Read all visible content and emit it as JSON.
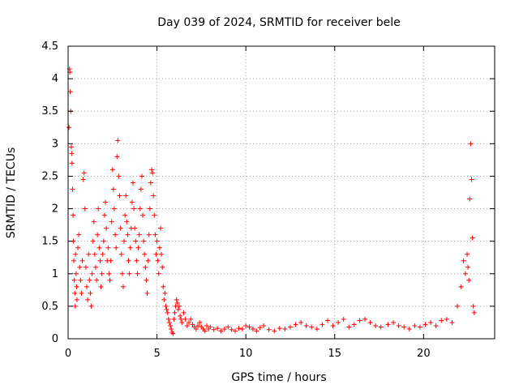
{
  "chart_data": {
    "type": "scatter",
    "title": "Day 039 of 2024, SRMTID for receiver bele",
    "xlabel": "GPS time / hours",
    "ylabel": "SRMTID / TECUs",
    "xlim": [
      0,
      24
    ],
    "ylim": [
      0,
      4.5
    ],
    "xticks": [
      0,
      5,
      10,
      15,
      20
    ],
    "xtick_labels": [
      "0",
      "5",
      "10",
      "15",
      "20"
    ],
    "yticks": [
      0,
      0.5,
      1,
      1.5,
      2,
      2.5,
      3,
      3.5,
      4,
      4.5
    ],
    "ytick_labels": [
      "0",
      "0.5",
      "1",
      "1.5",
      "2",
      "2.5",
      "3",
      "3.5",
      "4",
      "4.5"
    ],
    "grid": true,
    "marker": "+",
    "color": "#ff0000",
    "series": [
      {
        "name": "SRMTID",
        "x": [
          0.05,
          0.08,
          0.1,
          0.12,
          0.15,
          0.18,
          0.2,
          0.22,
          0.25,
          0.28,
          0.3,
          0.32,
          0.35,
          0.38,
          0.4,
          0.42,
          0.45,
          0.48,
          0.5,
          0.55,
          0.6,
          0.65,
          0.7,
          0.75,
          0.8,
          0.85,
          0.9,
          0.95,
          1.0,
          1.05,
          1.1,
          1.15,
          1.2,
          1.25,
          1.3,
          1.35,
          1.4,
          1.45,
          1.5,
          1.55,
          1.6,
          1.65,
          1.7,
          1.75,
          1.8,
          1.85,
          1.9,
          1.95,
          2.0,
          2.05,
          2.1,
          2.15,
          2.2,
          2.25,
          2.3,
          2.35,
          2.4,
          2.45,
          2.5,
          2.55,
          2.6,
          2.65,
          2.7,
          2.75,
          2.8,
          2.85,
          2.9,
          2.95,
          3.0,
          3.05,
          3.1,
          3.15,
          3.2,
          3.25,
          3.3,
          3.35,
          3.4,
          3.45,
          3.5,
          3.55,
          3.6,
          3.65,
          3.7,
          3.75,
          3.8,
          3.85,
          3.9,
          3.95,
          4.0,
          4.05,
          4.1,
          4.15,
          4.2,
          4.25,
          4.3,
          4.35,
          4.4,
          4.45,
          4.5,
          4.55,
          4.6,
          4.65,
          4.7,
          4.75,
          4.8,
          4.85,
          4.9,
          4.95,
          5.0,
          5.05,
          5.1,
          5.15,
          5.2,
          5.25,
          5.3,
          5.35,
          5.4,
          5.45,
          5.5,
          5.55,
          5.6,
          5.65,
          5.7,
          5.75,
          5.8,
          5.85,
          5.9,
          5.95,
          6.0,
          6.05,
          6.1,
          6.15,
          6.2,
          6.25,
          6.3,
          6.35,
          6.4,
          6.5,
          6.6,
          6.7,
          6.8,
          6.9,
          7.0,
          7.1,
          7.2,
          7.3,
          7.4,
          7.5,
          7.6,
          7.7,
          7.8,
          7.9,
          8.0,
          8.2,
          8.4,
          8.6,
          8.8,
          9.0,
          9.2,
          9.4,
          9.6,
          9.8,
          10.0,
          10.2,
          10.4,
          10.6,
          10.8,
          11.0,
          11.3,
          11.6,
          11.9,
          12.2,
          12.5,
          12.8,
          13.1,
          13.4,
          13.7,
          14.0,
          14.3,
          14.6,
          14.9,
          15.2,
          15.5,
          15.8,
          16.1,
          16.4,
          16.7,
          17.0,
          17.3,
          17.6,
          18.0,
          18.3,
          18.6,
          18.9,
          19.2,
          19.5,
          19.8,
          20.1,
          20.4,
          20.7,
          21.0,
          21.3,
          21.6,
          21.9,
          22.1,
          22.25,
          22.35,
          22.45,
          22.5,
          22.55,
          22.6,
          22.65,
          22.7,
          22.75,
          22.8,
          22.85
        ],
        "y": [
          3.25,
          4.15,
          4.1,
          3.8,
          3.5,
          2.95,
          2.85,
          2.7,
          2.3,
          1.9,
          1.5,
          1.2,
          0.9,
          0.7,
          0.5,
          1.3,
          1.0,
          0.8,
          0.6,
          1.4,
          1.6,
          1.1,
          0.9,
          0.7,
          1.2,
          2.45,
          2.55,
          2.0,
          1.1,
          0.8,
          0.6,
          1.3,
          0.9,
          0.7,
          0.5,
          1.0,
          1.5,
          1.8,
          1.3,
          1.1,
          0.9,
          1.6,
          2.0,
          1.4,
          1.2,
          0.8,
          1.0,
          1.3,
          1.5,
          1.9,
          2.1,
          1.7,
          1.2,
          1.4,
          1.0,
          0.9,
          1.2,
          1.8,
          2.6,
          2.3,
          2.0,
          1.6,
          1.4,
          2.8,
          3.05,
          2.5,
          2.2,
          1.7,
          1.3,
          1.0,
          0.8,
          1.5,
          1.9,
          2.2,
          1.8,
          1.6,
          1.2,
          1.0,
          1.4,
          1.7,
          2.1,
          2.4,
          2.0,
          1.7,
          1.5,
          1.2,
          1.0,
          1.4,
          1.6,
          2.0,
          2.3,
          2.5,
          1.9,
          1.5,
          1.3,
          1.1,
          0.9,
          0.7,
          1.2,
          1.6,
          2.0,
          2.4,
          2.6,
          2.55,
          2.2,
          1.9,
          1.6,
          1.3,
          1.5,
          1.2,
          1.0,
          1.4,
          1.7,
          1.3,
          1.1,
          0.8,
          0.6,
          0.7,
          0.5,
          0.45,
          0.4,
          0.3,
          0.25,
          0.2,
          0.15,
          0.1,
          0.08,
          0.3,
          0.4,
          0.5,
          0.6,
          0.55,
          0.45,
          0.5,
          0.35,
          0.3,
          0.25,
          0.4,
          0.3,
          0.2,
          0.25,
          0.3,
          0.22,
          0.18,
          0.15,
          0.2,
          0.25,
          0.18,
          0.15,
          0.12,
          0.2,
          0.15,
          0.18,
          0.14,
          0.16,
          0.12,
          0.15,
          0.18,
          0.14,
          0.12,
          0.16,
          0.15,
          0.2,
          0.18,
          0.15,
          0.12,
          0.17,
          0.2,
          0.14,
          0.12,
          0.16,
          0.15,
          0.18,
          0.22,
          0.25,
          0.2,
          0.18,
          0.15,
          0.22,
          0.28,
          0.2,
          0.25,
          0.3,
          0.18,
          0.22,
          0.28,
          0.3,
          0.25,
          0.2,
          0.18,
          0.22,
          0.25,
          0.2,
          0.18,
          0.15,
          0.2,
          0.18,
          0.22,
          0.25,
          0.2,
          0.28,
          0.3,
          0.25,
          0.5,
          0.8,
          1.2,
          1.0,
          1.3,
          1.1,
          0.9,
          2.15,
          3.0,
          2.45,
          1.55,
          0.5,
          0.4
        ]
      }
    ]
  }
}
